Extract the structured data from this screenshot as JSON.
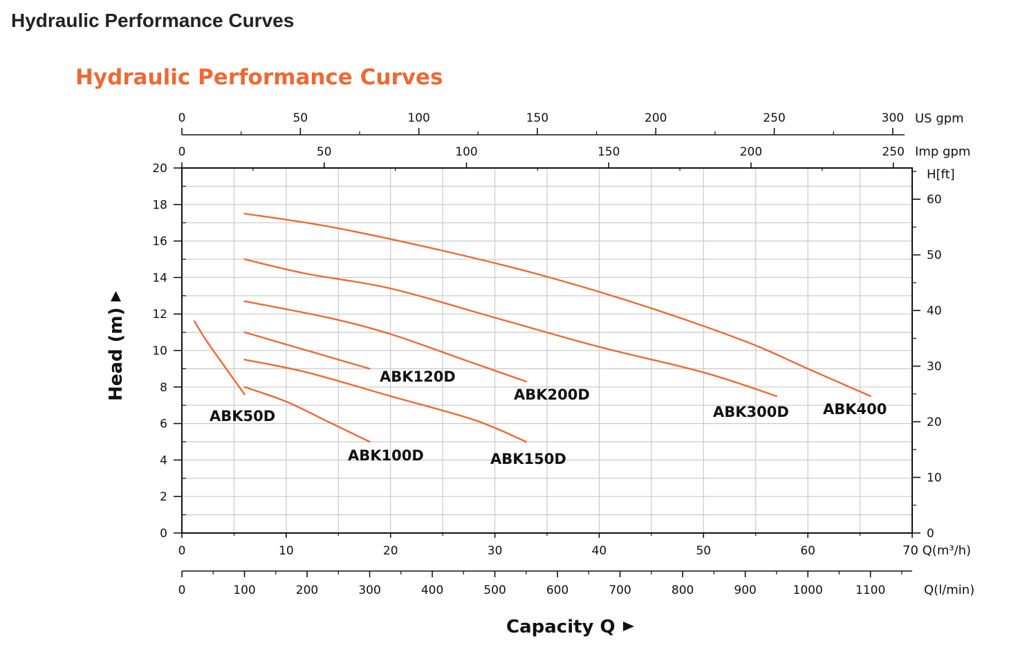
{
  "page": {
    "heading": "Hydraulic Performance Curves"
  },
  "colors": {
    "curve": "#ec6a35",
    "title": "#ec6a35",
    "grid": "#c9c9c9",
    "axis": "#111111"
  },
  "chart_data": {
    "type": "line",
    "title": "Hydraulic Performance Curves",
    "x_primary": {
      "label": "Q(m³/h)",
      "range": [
        0,
        70
      ],
      "ticks": [
        0,
        10,
        20,
        30,
        40,
        50,
        60,
        70
      ]
    },
    "x_lmin": {
      "label": "Q(l/min)",
      "ticks": [
        0,
        100,
        200,
        300,
        400,
        500,
        600,
        700,
        800,
        900,
        1000,
        1100
      ]
    },
    "x_usgpm": {
      "label": "US gpm",
      "ticks": [
        0,
        50,
        100,
        150,
        200,
        250,
        300
      ]
    },
    "x_impgpm": {
      "label": "Imp gpm",
      "ticks": [
        0,
        50,
        100,
        150,
        200,
        250
      ]
    },
    "y_primary": {
      "label": "Head (m)",
      "range": [
        0,
        20
      ],
      "ticks": [
        0,
        2,
        4,
        6,
        8,
        10,
        12,
        14,
        16,
        18,
        20
      ]
    },
    "y_feet": {
      "label": "H[ft]",
      "ticks": [
        0,
        10,
        20,
        30,
        40,
        50,
        60
      ]
    },
    "xlabel": "Capacity Q",
    "grid": true,
    "series": [
      {
        "name": "ABK50D",
        "points": [
          [
            1.2,
            11.6
          ],
          [
            2.4,
            10.5
          ],
          [
            4,
            9.2
          ],
          [
            6,
            7.6
          ]
        ]
      },
      {
        "name": "ABK100D",
        "points": [
          [
            6,
            8.0
          ],
          [
            10,
            7.2
          ],
          [
            14,
            6.1
          ],
          [
            18,
            5.0
          ]
        ]
      },
      {
        "name": "ABK120D",
        "points": [
          [
            6,
            11.0
          ],
          [
            12,
            10.0
          ],
          [
            18,
            9.0
          ]
        ]
      },
      {
        "name": "ABK150D",
        "points": [
          [
            6,
            9.5
          ],
          [
            12,
            8.8
          ],
          [
            20,
            7.5
          ],
          [
            28,
            6.2
          ],
          [
            33,
            5.0
          ]
        ]
      },
      {
        "name": "ABK200D",
        "points": [
          [
            6,
            12.7
          ],
          [
            14,
            11.8
          ],
          [
            20,
            10.9
          ],
          [
            27,
            9.5
          ],
          [
            33,
            8.3
          ]
        ]
      },
      {
        "name": "ABK300D",
        "points": [
          [
            6,
            15.0
          ],
          [
            12,
            14.2
          ],
          [
            20,
            13.4
          ],
          [
            30,
            11.8
          ],
          [
            40,
            10.2
          ],
          [
            50,
            8.8
          ],
          [
            57,
            7.5
          ]
        ]
      },
      {
        "name": "ABK400",
        "points": [
          [
            6,
            17.5
          ],
          [
            14,
            16.8
          ],
          [
            24,
            15.6
          ],
          [
            34,
            14.2
          ],
          [
            44,
            12.5
          ],
          [
            54,
            10.5
          ],
          [
            60,
            9.0
          ],
          [
            66,
            7.5
          ]
        ]
      }
    ]
  }
}
